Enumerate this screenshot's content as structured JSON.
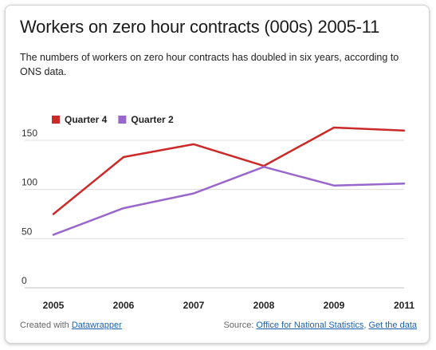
{
  "header": {
    "title": "Workers on zero hour contracts (000s) 2005-11",
    "subtitle": "The numbers of workers on zero hour contracts has doubled in six years, according to ONS data."
  },
  "chart_data": {
    "type": "line",
    "title": "Workers on zero hour contracts (000s) 2005-11",
    "subtitle": "The numbers of workers on zero hour contracts has doubled in six years, according to ONS data.",
    "x": [
      "2005",
      "2006",
      "2007",
      "2008",
      "2009",
      "2011"
    ],
    "series": [
      {
        "name": "Quarter 4",
        "color": "#cc2929",
        "values": [
          75,
          133,
          146,
          124,
          163,
          160
        ]
      },
      {
        "name": "Quarter 2",
        "color": "#9966cc",
        "values": [
          54,
          81,
          96,
          123,
          104,
          106
        ]
      }
    ],
    "yticks": [
      0,
      50,
      100,
      150
    ],
    "ylim": [
      0,
      170
    ],
    "xlabel": "",
    "ylabel": "",
    "grid": true,
    "legend": "top-left"
  },
  "footer": {
    "created_prefix": "Created with ",
    "created_link": "Datawrapper",
    "source_prefix": "Source: ",
    "source_link": "Office for National Statistics",
    "separator": ", ",
    "get_data_link": "Get the data"
  },
  "colors": {
    "accent_link": "#1a63b3",
    "series_q4": "#cc2929",
    "series_q2": "#9966cc"
  }
}
